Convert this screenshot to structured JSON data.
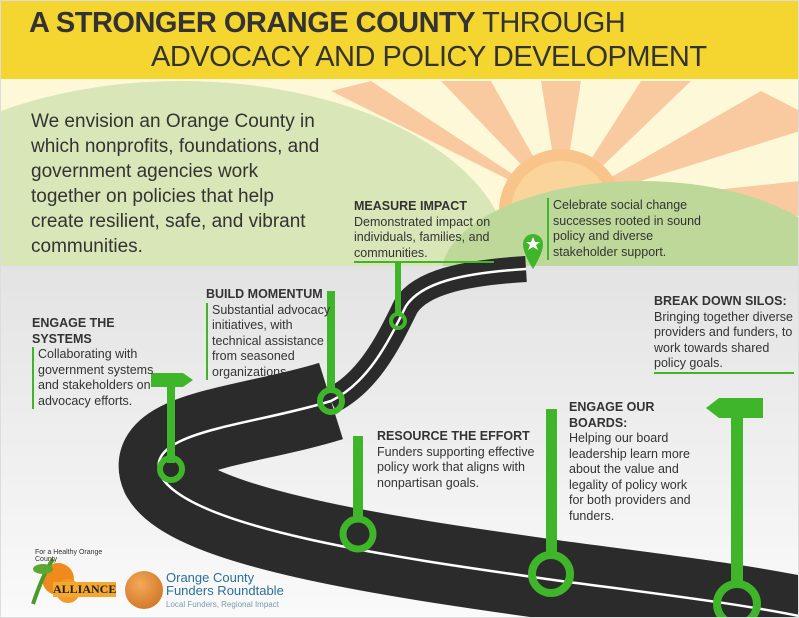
{
  "header": {
    "title_bold": "A STRONGER ORANGE COUNTY",
    "title_rest": " THROUGH",
    "title_line2": "ADVOCACY AND POLICY DEVELOPMENT"
  },
  "vision": "We envision an Orange County in which nonprofits, foundations, and government agencies work together on policies that help create resilient, safe, and vibrant communities.",
  "celebrate": "Celebrate social change successes rooted in sound policy and diverse stakeholder support.",
  "steps": [
    {
      "title": "ENGAGE THE SYSTEMS",
      "body": "Collaborating with government systems and stakeholders on advocacy efforts."
    },
    {
      "title": "BUILD MOMENTUM",
      "body": "Substantial advocacy initiatives, with technical assistance from seasoned organizations."
    },
    {
      "title": "MEASURE IMPACT",
      "body": "Demonstrated impact on individuals, families, and communities."
    },
    {
      "title": "RESOURCE THE EFFORT",
      "body": "Funders supporting effective policy work that aligns with nonpartisan goals."
    },
    {
      "title": "ENGAGE OUR BOARDS:",
      "body": "Helping our board leadership learn more about the value and legality of policy work for both providers and funders."
    },
    {
      "title": "BREAK DOWN SILOS:",
      "body": "Bringing together diverse providers and funders, to work towards shared policy goals."
    }
  ],
  "logos": {
    "alliance": {
      "arc": "For a Healthy Orange County",
      "word": "ALLIANCE"
    },
    "funders": {
      "name1": "Orange County",
      "name2": "Funders Roundtable",
      "tagline": "Local Funders, Regional Impact"
    }
  },
  "colors": {
    "banner": "#f5d52f",
    "green": "#3fb52a",
    "road": "#2b2b2b",
    "sun": "#f9c78a"
  }
}
